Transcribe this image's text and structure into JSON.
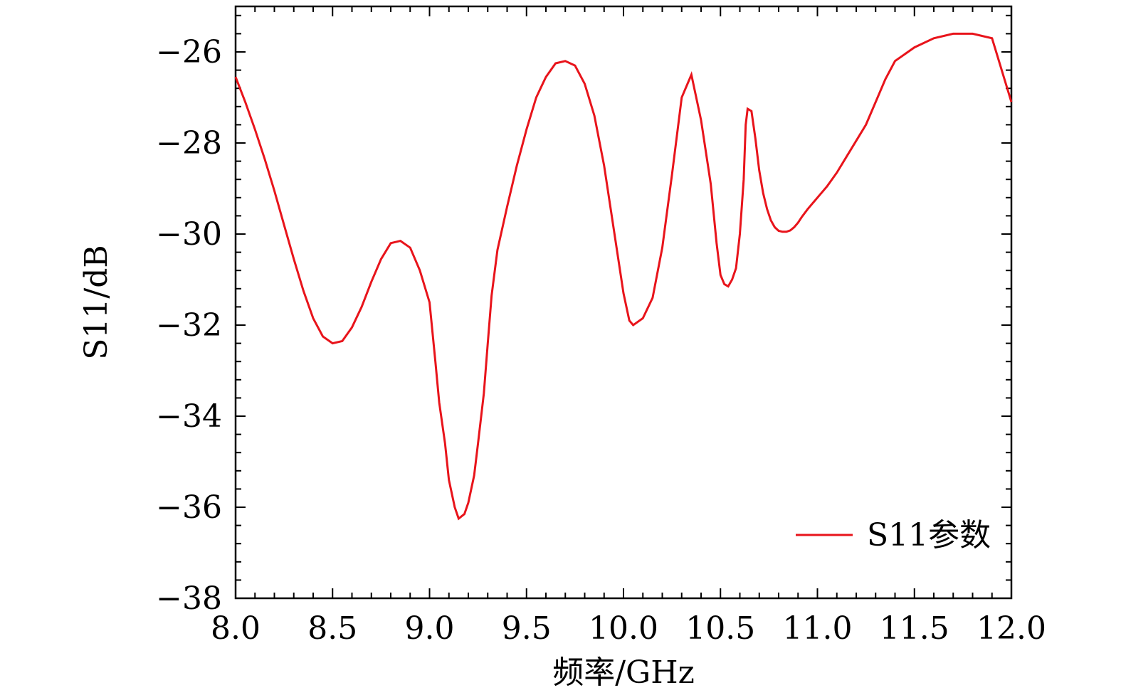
{
  "chart_data": {
    "type": "line",
    "xlabel": "频率/GHz",
    "ylabel": "S11/dB",
    "xlim": [
      8.0,
      12.0
    ],
    "ylim": [
      -38,
      -25
    ],
    "x_ticks": [
      "8.0",
      "8.5",
      "9.0",
      "9.5",
      "10.0",
      "10.5",
      "11.0",
      "11.5",
      "12.0"
    ],
    "y_ticks": [
      "−26",
      "−28",
      "−30",
      "−32",
      "−34",
      "−36",
      "−38"
    ],
    "grid": false,
    "legend_position": "bottom-right",
    "series": [
      {
        "name": "S11参数",
        "color": "#e8141b",
        "x": [
          8.0,
          8.05,
          8.1,
          8.15,
          8.2,
          8.25,
          8.3,
          8.35,
          8.4,
          8.45,
          8.5,
          8.55,
          8.6,
          8.65,
          8.7,
          8.75,
          8.8,
          8.85,
          8.9,
          8.95,
          9.0,
          9.03,
          9.05,
          9.08,
          9.1,
          9.13,
          9.15,
          9.18,
          9.2,
          9.23,
          9.25,
          9.28,
          9.3,
          9.32,
          9.35,
          9.4,
          9.45,
          9.5,
          9.55,
          9.6,
          9.65,
          9.7,
          9.75,
          9.8,
          9.85,
          9.9,
          9.95,
          10.0,
          10.03,
          10.05,
          10.1,
          10.15,
          10.2,
          10.25,
          10.3,
          10.35,
          10.4,
          10.45,
          10.48,
          10.5,
          10.52,
          10.54,
          10.56,
          10.58,
          10.6,
          10.62,
          10.63,
          10.64,
          10.66,
          10.68,
          10.7,
          10.72,
          10.74,
          10.76,
          10.78,
          10.8,
          10.82,
          10.84,
          10.86,
          10.88,
          10.9,
          10.92,
          10.95,
          11.0,
          11.05,
          11.1,
          11.15,
          11.2,
          11.25,
          11.3,
          11.35,
          11.4,
          11.5,
          11.6,
          11.7,
          11.8,
          11.9,
          12.0
        ],
        "y": [
          -26.55,
          -27.1,
          -27.7,
          -28.35,
          -29.05,
          -29.8,
          -30.55,
          -31.25,
          -31.85,
          -32.25,
          -32.4,
          -32.35,
          -32.05,
          -31.6,
          -31.05,
          -30.55,
          -30.2,
          -30.15,
          -30.3,
          -30.8,
          -31.5,
          -32.8,
          -33.7,
          -34.6,
          -35.4,
          -36.0,
          -36.25,
          -36.15,
          -35.9,
          -35.3,
          -34.6,
          -33.5,
          -32.4,
          -31.35,
          -30.35,
          -29.4,
          -28.5,
          -27.7,
          -27.0,
          -26.55,
          -26.25,
          -26.2,
          -26.3,
          -26.7,
          -27.4,
          -28.5,
          -29.9,
          -31.3,
          -31.9,
          -32.0,
          -31.85,
          -31.4,
          -30.3,
          -28.7,
          -27.0,
          -26.5,
          -27.5,
          -28.9,
          -30.2,
          -30.9,
          -31.1,
          -31.15,
          -31.0,
          -30.75,
          -30.0,
          -28.8,
          -27.6,
          -27.25,
          -27.3,
          -27.9,
          -28.6,
          -29.1,
          -29.45,
          -29.7,
          -29.85,
          -29.93,
          -29.95,
          -29.95,
          -29.92,
          -29.85,
          -29.75,
          -29.62,
          -29.45,
          -29.2,
          -28.95,
          -28.65,
          -28.3,
          -27.95,
          -27.6,
          -27.1,
          -26.6,
          -26.2,
          -25.9,
          -25.7,
          -25.6,
          -25.6,
          -25.7,
          -27.1
        ]
      }
    ]
  }
}
